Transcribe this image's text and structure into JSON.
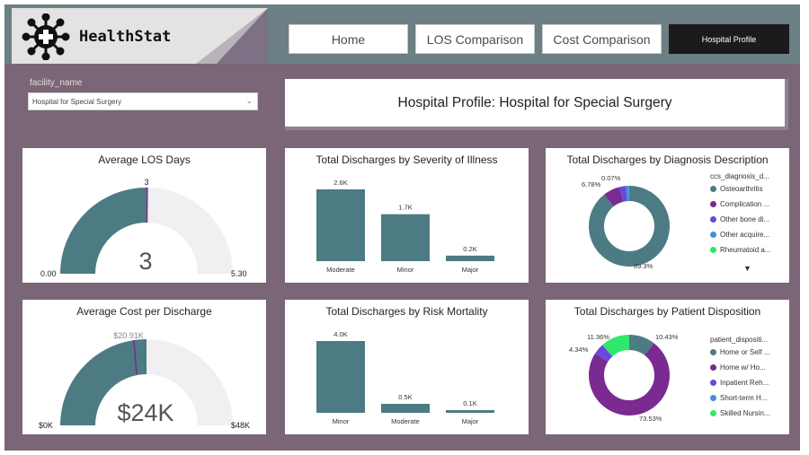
{
  "app": {
    "title": "HealthStat"
  },
  "nav": {
    "home": "Home",
    "los": "LOS Comparison",
    "cost": "Cost Comparison",
    "profile": "Hospital Profile"
  },
  "filter": {
    "label": "facility_name",
    "value": "Hospital for Special Surgery"
  },
  "profile_title": "Hospital Profile: Hospital for Special Surgery",
  "colors": {
    "teal": "#4d7b83",
    "purple": "#7a2a90",
    "accent_bg": "#7a6676"
  },
  "cards": {
    "los": {
      "title": "Average LOS Days",
      "value": "3",
      "min": "0.00",
      "max": "5.30",
      "target": "3"
    },
    "severity": {
      "title": "Total Discharges by Severity of Illness",
      "bars": [
        {
          "label": "Moderate",
          "display": "2.6K"
        },
        {
          "label": "Minor",
          "display": "1.7K"
        },
        {
          "label": "Major",
          "display": "0.2K"
        }
      ]
    },
    "diagnosis": {
      "title": "Total Discharges by Diagnosis Description",
      "legend_title": "ccs_diagnosis_d...",
      "legend": [
        {
          "label": "Osteoarthritis",
          "color": "#4d7b83"
        },
        {
          "label": "Complication ...",
          "color": "#7a2a90"
        },
        {
          "label": "Other bone di...",
          "color": "#6a48d8"
        },
        {
          "label": "Other acquire...",
          "color": "#3f8ee0"
        },
        {
          "label": "Rheumatoid a...",
          "color": "#2fe86a"
        }
      ],
      "labels": {
        "a": "6.78%",
        "b": "0.07%",
        "c": "89.3%"
      },
      "more_icon": "caret-down-icon"
    },
    "cost": {
      "title": "Average Cost per Discharge",
      "value": "$24K",
      "min": "$0K",
      "max": "$48K",
      "target": "$20.91K"
    },
    "mortality": {
      "title": "Total Discharges by Risk Mortality",
      "bars": [
        {
          "label": "Minor",
          "display": "4.0K"
        },
        {
          "label": "Moderate",
          "display": "0.5K"
        },
        {
          "label": "Major",
          "display": "0.1K"
        }
      ]
    },
    "disposition": {
      "title": "Total Discharges by Patient Disposition",
      "legend_title": "patient_dispositi...",
      "legend": [
        {
          "label": "Home or Self ...",
          "color": "#4d7b83"
        },
        {
          "label": "Home w/ Ho...",
          "color": "#7a2a90"
        },
        {
          "label": "Inpatient Reh...",
          "color": "#6a48d8"
        },
        {
          "label": "Short-term H...",
          "color": "#3f8ee0"
        },
        {
          "label": "Skilled Nursin...",
          "color": "#2fe86a"
        }
      ],
      "labels": {
        "a": "11.36%",
        "b": "10.43%",
        "c": "4.34%",
        "d": "73.53%"
      }
    }
  },
  "chart_data": [
    {
      "type": "bar",
      "title": "Total Discharges by Severity of Illness",
      "categories": [
        "Moderate",
        "Minor",
        "Major"
      ],
      "values": [
        2600,
        1700,
        200
      ]
    },
    {
      "type": "bar",
      "title": "Total Discharges by Risk Mortality",
      "categories": [
        "Minor",
        "Moderate",
        "Major"
      ],
      "values": [
        4000,
        500,
        100
      ]
    },
    {
      "type": "pie",
      "title": "Total Discharges by Diagnosis Description",
      "categories": [
        "Osteoarthritis",
        "Complication ...",
        "Other bone di...",
        "Other acquire...",
        "Rheumatoid a..."
      ],
      "values": [
        89.3,
        6.78,
        2.5,
        1.3,
        0.07
      ]
    },
    {
      "type": "pie",
      "title": "Total Discharges by Patient Disposition",
      "categories": [
        "Home or Self ...",
        "Home w/ Ho...",
        "Inpatient Reh...",
        "Short-term H...",
        "Skilled Nursin..."
      ],
      "values": [
        10.43,
        73.53,
        4.34,
        0.34,
        11.36
      ]
    }
  ]
}
